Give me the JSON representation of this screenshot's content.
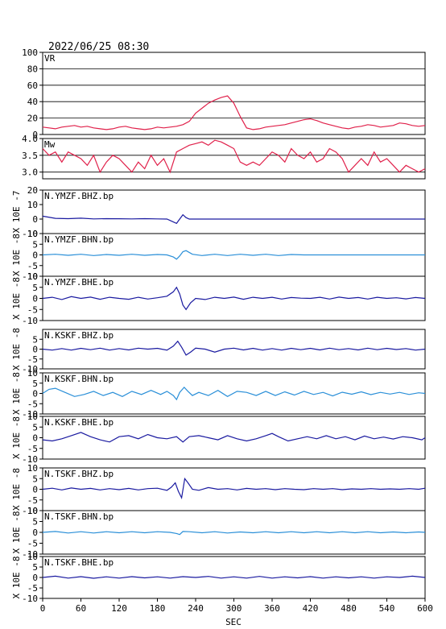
{
  "title": "2022/06/25 08:30",
  "xlabel": "SEC",
  "x_ticks": [
    "0",
    "60",
    "120",
    "180",
    "240",
    "300",
    "360",
    "420",
    "480",
    "540",
    "600"
  ],
  "colors": {
    "vr": "#e0204a",
    "mw": "#e0204a",
    "dark": "#1a1aa0",
    "light": "#2a8fd8"
  },
  "chart_data": {
    "type": "line",
    "xlim": [
      0,
      600
    ],
    "panels": [
      {
        "id": "vr",
        "label": "VR",
        "ylim": [
          0,
          100
        ],
        "yticks": [
          "100",
          "80",
          "60",
          "40",
          "20",
          "0"
        ],
        "grid": true,
        "unit_label": "",
        "x": [
          0,
          10,
          20,
          30,
          40,
          50,
          60,
          70,
          80,
          90,
          100,
          110,
          120,
          130,
          140,
          150,
          160,
          170,
          180,
          190,
          200,
          210,
          220,
          230,
          240,
          250,
          260,
          270,
          280,
          290,
          300,
          310,
          320,
          330,
          340,
          350,
          360,
          370,
          380,
          390,
          400,
          410,
          420,
          430,
          440,
          450,
          460,
          470,
          480,
          490,
          500,
          510,
          520,
          530,
          540,
          550,
          560,
          570,
          580,
          590,
          600
        ],
        "values": [
          9,
          8,
          7,
          9,
          10,
          11,
          9,
          10,
          8,
          7,
          6,
          7,
          9,
          10,
          8,
          7,
          6,
          7,
          9,
          8,
          9,
          10,
          12,
          16,
          26,
          32,
          38,
          42,
          45,
          47,
          38,
          22,
          8,
          6,
          7,
          9,
          10,
          11,
          12,
          14,
          16,
          18,
          19,
          17,
          14,
          12,
          10,
          8,
          7,
          9,
          10,
          12,
          11,
          9,
          10,
          11,
          14,
          13,
          11,
          10,
          11
        ]
      },
      {
        "id": "mw",
        "label": "Mw",
        "ylim": [
          2.8,
          4.0
        ],
        "yticks": [
          "4.0",
          "3.5",
          "3.0"
        ],
        "grid": true,
        "unit_label": "",
        "x": [
          0,
          10,
          20,
          30,
          40,
          50,
          60,
          70,
          80,
          90,
          100,
          110,
          120,
          130,
          140,
          150,
          160,
          170,
          180,
          190,
          200,
          210,
          220,
          230,
          240,
          250,
          260,
          270,
          280,
          290,
          300,
          310,
          320,
          330,
          340,
          350,
          360,
          370,
          380,
          390,
          400,
          410,
          420,
          430,
          440,
          450,
          460,
          470,
          480,
          490,
          500,
          510,
          520,
          530,
          540,
          550,
          560,
          570,
          580,
          590,
          600
        ],
        "values": [
          3.7,
          3.5,
          3.6,
          3.3,
          3.6,
          3.5,
          3.4,
          3.2,
          3.5,
          3.0,
          3.3,
          3.5,
          3.4,
          3.2,
          3.0,
          3.3,
          3.1,
          3.5,
          3.2,
          3.4,
          3.0,
          3.6,
          3.7,
          3.8,
          3.85,
          3.9,
          3.8,
          3.95,
          3.9,
          3.8,
          3.7,
          3.3,
          3.2,
          3.3,
          3.2,
          3.4,
          3.6,
          3.5,
          3.3,
          3.7,
          3.5,
          3.4,
          3.6,
          3.3,
          3.4,
          3.7,
          3.6,
          3.4,
          3.0,
          3.2,
          3.4,
          3.2,
          3.6,
          3.3,
          3.4,
          3.2,
          3.0,
          3.2,
          3.1,
          3.0,
          3.1
        ]
      },
      {
        "id": "ymzf-bhz",
        "label": "N.YMZF.BHZ.bp",
        "ylim": [
          -10,
          20
        ],
        "yticks": [
          "20",
          "10",
          "0",
          "-10"
        ],
        "unit_label": "X 10E -7",
        "color": "dark",
        "x": [
          0,
          20,
          40,
          60,
          80,
          100,
          120,
          140,
          160,
          180,
          195,
          205,
          210,
          215,
          220,
          225,
          230,
          240,
          260,
          280,
          300,
          320,
          340,
          360,
          380,
          400,
          420,
          440,
          460,
          480,
          500,
          520,
          540,
          560,
          580,
          600
        ],
        "values": [
          2,
          0.5,
          0.3,
          0.6,
          0.1,
          0.3,
          0.2,
          0.1,
          0.3,
          0.1,
          0,
          -2,
          -3,
          0,
          3,
          1,
          0,
          0,
          0,
          0,
          0,
          0,
          0,
          0,
          0,
          0,
          0,
          0,
          0,
          0,
          0,
          0,
          0,
          0,
          0,
          0
        ]
      },
      {
        "id": "ymzf-bhn",
        "label": "N.YMZF.BHN.bp",
        "ylim": [
          -10,
          10
        ],
        "yticks": [
          "10",
          "5",
          "0",
          "-5",
          "-10"
        ],
        "unit_label": "X 10E -8",
        "color": "light",
        "x": [
          0,
          20,
          40,
          60,
          80,
          100,
          120,
          140,
          160,
          180,
          195,
          205,
          210,
          215,
          220,
          225,
          235,
          250,
          270,
          290,
          310,
          330,
          350,
          370,
          390,
          410,
          430,
          450,
          470,
          490,
          510,
          530,
          550,
          570,
          590,
          600
        ],
        "values": [
          0,
          0.3,
          -0.2,
          0.3,
          -0.3,
          0.2,
          -0.2,
          0.3,
          -0.2,
          0.2,
          0,
          -1,
          -2,
          -0.5,
          1.5,
          2,
          0.3,
          -0.3,
          0.3,
          -0.3,
          0.3,
          -0.2,
          0.3,
          -0.3,
          0.2,
          0,
          0,
          0,
          0,
          0,
          0,
          0,
          0,
          0,
          0,
          0
        ]
      },
      {
        "id": "ymzf-bhe",
        "label": "N.YMZF.BHE.bp",
        "ylim": [
          -10,
          10
        ],
        "yticks": [
          "10",
          "5",
          "0",
          "-5",
          "-10"
        ],
        "unit_label": "X 10E -8",
        "color": "dark",
        "x": [
          0,
          15,
          30,
          45,
          60,
          75,
          90,
          105,
          120,
          135,
          150,
          165,
          180,
          195,
          205,
          210,
          215,
          220,
          225,
          232,
          240,
          255,
          270,
          285,
          300,
          315,
          330,
          345,
          360,
          375,
          390,
          405,
          420,
          435,
          450,
          465,
          480,
          495,
          510,
          525,
          540,
          555,
          570,
          585,
          600
        ],
        "values": [
          0,
          0.5,
          -0.5,
          0.8,
          0,
          0.6,
          -0.4,
          0.5,
          0,
          -0.4,
          0.5,
          -0.3,
          0.3,
          1,
          3,
          5,
          2,
          -3,
          -5,
          -2,
          0,
          -0.5,
          0.5,
          0,
          0.6,
          -0.4,
          0.5,
          0,
          0.5,
          -0.3,
          0.4,
          0.1,
          0,
          0.5,
          -0.3,
          0.6,
          0,
          0.4,
          -0.3,
          0.5,
          0,
          0.3,
          -0.2,
          0.4,
          0
        ]
      },
      {
        "id": "kskf-bhz",
        "label": "N.KSKF.BHZ.bp",
        "ylim": [
          -10,
          10
        ],
        "yticks": [
          "5",
          "0",
          "-5",
          "-10"
        ],
        "unit_label": "X 10E -8",
        "color": "dark",
        "x": [
          0,
          15,
          30,
          45,
          60,
          75,
          90,
          105,
          120,
          135,
          150,
          165,
          180,
          195,
          205,
          212,
          218,
          225,
          232,
          240,
          255,
          270,
          285,
          300,
          315,
          330,
          345,
          360,
          375,
          390,
          405,
          420,
          435,
          450,
          465,
          480,
          495,
          510,
          525,
          540,
          555,
          570,
          585,
          600
        ],
        "values": [
          0,
          -0.5,
          0.3,
          -0.5,
          0.4,
          -0.3,
          0.5,
          -0.5,
          0.3,
          -0.4,
          0.5,
          0,
          0.4,
          -0.5,
          1.5,
          4,
          1,
          -3,
          -1.5,
          0.5,
          0,
          -1.5,
          0,
          0.5,
          -0.4,
          0.4,
          -0.5,
          0.3,
          -0.5,
          0.4,
          -0.3,
          0.4,
          -0.4,
          0.5,
          -0.3,
          0.3,
          -0.4,
          0.5,
          -0.3,
          0.4,
          -0.2,
          0.3,
          -0.5,
          0
        ]
      },
      {
        "id": "kskf-bhn",
        "label": "N.KSKF.BHN.bp",
        "ylim": [
          -10,
          10
        ],
        "yticks": [
          "10",
          "5",
          "0",
          "-5",
          "-10"
        ],
        "unit_label": "X 10E -8",
        "color": "light",
        "x": [
          0,
          10,
          20,
          35,
          50,
          65,
          80,
          95,
          110,
          125,
          140,
          155,
          170,
          185,
          195,
          205,
          210,
          215,
          222,
          228,
          235,
          245,
          260,
          275,
          290,
          305,
          320,
          335,
          350,
          365,
          380,
          395,
          410,
          425,
          440,
          455,
          470,
          485,
          500,
          515,
          530,
          545,
          560,
          575,
          590,
          600
        ],
        "values": [
          0,
          2,
          2.5,
          0.5,
          -1.5,
          -0.5,
          1,
          -1,
          0.5,
          -1.5,
          1,
          -0.5,
          1.5,
          -0.5,
          1,
          -1,
          -3,
          0.5,
          3,
          1,
          -1,
          0.5,
          -1,
          1.5,
          -1.5,
          1,
          0.5,
          -1,
          1,
          -1,
          0.8,
          -0.8,
          1,
          -0.5,
          0.5,
          -1.2,
          0.6,
          -0.4,
          0.8,
          -0.6,
          0.5,
          -0.3,
          0.5,
          -0.5,
          0.3,
          0
        ]
      },
      {
        "id": "kskf-bhe",
        "label": "N.KSKF.BHE.bp",
        "ylim": [
          -10,
          10
        ],
        "yticks": [
          "10",
          "5",
          "0",
          "-5",
          "-10"
        ],
        "unit_label": "X 10E -8",
        "color": "dark",
        "x": [
          0,
          15,
          30,
          45,
          60,
          75,
          90,
          105,
          120,
          135,
          150,
          165,
          180,
          195,
          210,
          220,
          230,
          245,
          260,
          275,
          290,
          305,
          320,
          335,
          350,
          360,
          370,
          385,
          400,
          415,
          430,
          445,
          460,
          475,
          490,
          505,
          520,
          535,
          550,
          565,
          580,
          595,
          600
        ],
        "values": [
          -1,
          -1.5,
          -0.5,
          1,
          2.5,
          0.5,
          -1,
          -2,
          0.5,
          1,
          -0.5,
          1.5,
          0,
          -0.5,
          0.5,
          -2,
          0.5,
          1,
          0,
          -1,
          1,
          -0.5,
          -1.5,
          -0.5,
          1,
          2,
          0.5,
          -1.5,
          -0.5,
          0.5,
          -0.5,
          1,
          -0.5,
          0.5,
          -1,
          0.8,
          -0.5,
          0.3,
          -0.6,
          0.5,
          0,
          -1,
          0
        ]
      },
      {
        "id": "tskf-bhz",
        "label": "N.TSKF.BHZ.bp",
        "ylim": [
          -10,
          10
        ],
        "yticks": [
          "10",
          "5",
          "0",
          "-5",
          "-10"
        ],
        "unit_label": "X 10E -8",
        "color": "dark",
        "x": [
          0,
          15,
          30,
          45,
          60,
          75,
          90,
          105,
          120,
          135,
          150,
          165,
          180,
          195,
          202,
          208,
          213,
          218,
          223,
          228,
          235,
          245,
          260,
          275,
          290,
          305,
          320,
          335,
          350,
          365,
          380,
          395,
          410,
          425,
          440,
          455,
          470,
          485,
          500,
          515,
          530,
          545,
          560,
          575,
          590,
          600
        ],
        "values": [
          0,
          0.5,
          -0.3,
          0.6,
          0,
          0.4,
          -0.3,
          0.3,
          -0.2,
          0.4,
          -0.3,
          0.3,
          0.5,
          -0.5,
          1,
          3,
          -1,
          -4,
          5,
          3,
          0,
          -0.5,
          0.8,
          0,
          0.3,
          -0.3,
          0.4,
          0,
          0.3,
          -0.2,
          0.3,
          0,
          -0.2,
          0.3,
          0,
          0.3,
          -0.2,
          0.2,
          0,
          0.3,
          0,
          0.2,
          0,
          0.3,
          0,
          0.5
        ]
      },
      {
        "id": "tskf-bhn",
        "label": "N.TSKF.BHN.bp",
        "ylim": [
          -10,
          10
        ],
        "yticks": [
          "10",
          "5",
          "0",
          "-5",
          "-10"
        ],
        "unit_label": "X 10E -8",
        "color": "light",
        "x": [
          0,
          20,
          40,
          60,
          80,
          100,
          120,
          140,
          160,
          180,
          200,
          210,
          215,
          220,
          230,
          250,
          270,
          290,
          310,
          330,
          350,
          370,
          390,
          410,
          430,
          450,
          470,
          490,
          510,
          530,
          550,
          570,
          590,
          600
        ],
        "values": [
          0,
          0.4,
          -0.3,
          0.3,
          -0.3,
          0.3,
          -0.2,
          0.3,
          -0.2,
          0.3,
          0,
          -0.5,
          -1,
          0.4,
          0.3,
          -0.2,
          0.3,
          -0.3,
          0.2,
          -0.2,
          0.3,
          -0.2,
          0.3,
          -0.2,
          0.3,
          -0.2,
          0.3,
          -0.2,
          0.3,
          -0.2,
          0.2,
          -0.2,
          0.2,
          0
        ]
      },
      {
        "id": "tskf-bhe",
        "label": "N.TSKF.BHE.bp",
        "ylim": [
          -10,
          10
        ],
        "yticks": [
          "10",
          "5",
          "0",
          "-5",
          "-10"
        ],
        "unit_label": "X 10E -8",
        "color": "dark",
        "x": [
          0,
          20,
          40,
          60,
          80,
          100,
          120,
          140,
          160,
          180,
          200,
          220,
          240,
          260,
          280,
          300,
          320,
          340,
          360,
          380,
          400,
          420,
          440,
          460,
          480,
          500,
          520,
          540,
          560,
          580,
          600
        ],
        "values": [
          0,
          0.6,
          -0.3,
          0.4,
          -0.4,
          0.3,
          -0.3,
          0.4,
          -0.2,
          0.3,
          -0.3,
          0.4,
          0,
          0.5,
          -0.3,
          0.3,
          -0.3,
          0.5,
          -0.3,
          0.3,
          -0.2,
          0.4,
          -0.3,
          0.3,
          -0.2,
          0.3,
          -0.3,
          0.3,
          0,
          0.6,
          0
        ]
      }
    ]
  }
}
